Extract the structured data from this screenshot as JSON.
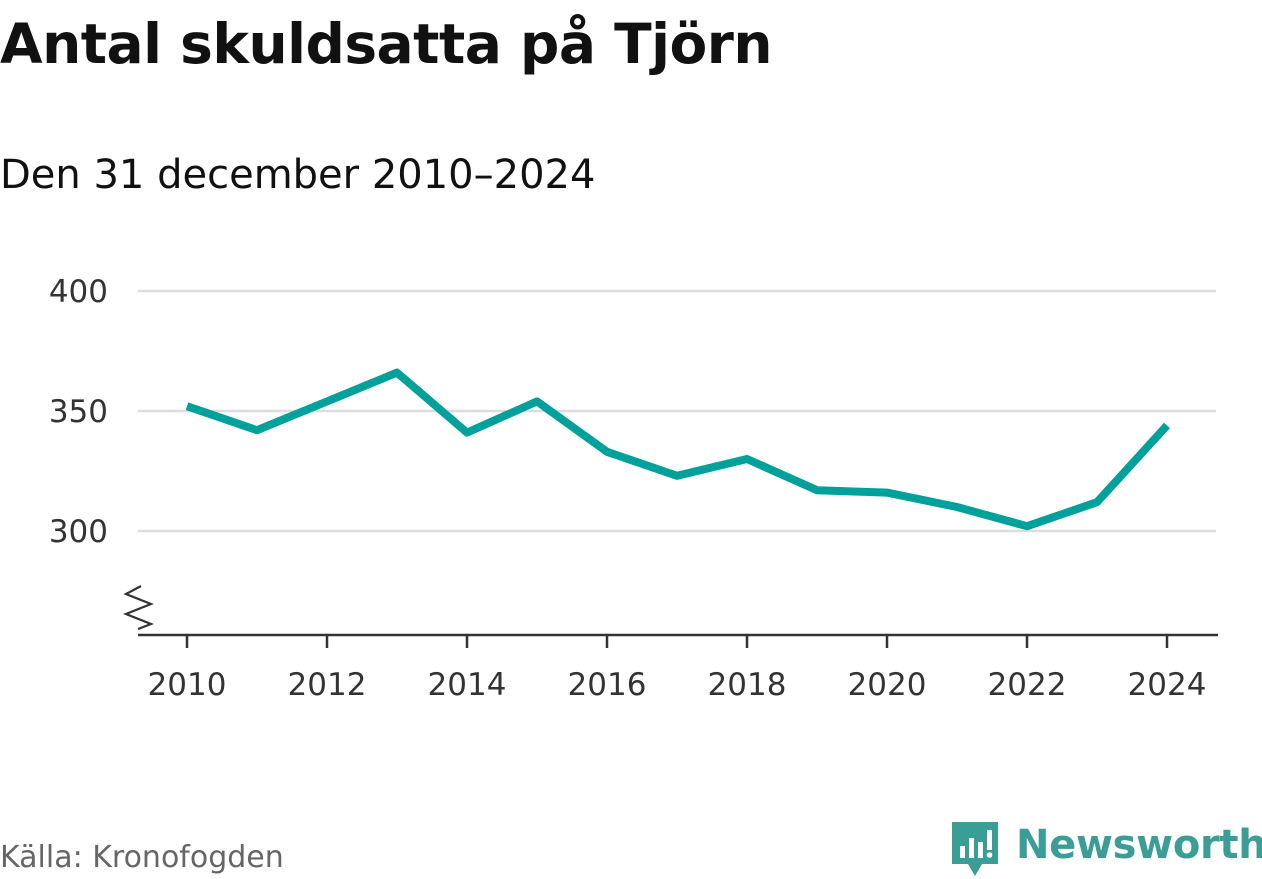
{
  "title": "Antal skuldsatta på Tjörn",
  "subtitle": "Den 31 december 2010–2024",
  "source": "Källa: Kronofogden",
  "brand": {
    "name": "Newsworthy",
    "icon": "newsworthy-logo-icon",
    "color": "#3a9e96"
  },
  "colors": {
    "line": "#00a19a",
    "grid": "#dddddd",
    "axis": "#333333",
    "text": "#333333"
  },
  "chart_data": {
    "type": "line",
    "title": "Antal skuldsatta på Tjörn",
    "subtitle": "Den 31 december 2010–2024",
    "xlabel": "",
    "ylabel": "",
    "x": [
      2010,
      2011,
      2012,
      2013,
      2014,
      2015,
      2016,
      2017,
      2018,
      2019,
      2020,
      2021,
      2022,
      2023,
      2024
    ],
    "series": [
      {
        "name": "Antal skuldsatta",
        "values": [
          352,
          342,
          354,
          366,
          341,
          354,
          333,
          323,
          330,
          317,
          316,
          310,
          302,
          312,
          344
        ]
      }
    ],
    "ylim": [
      257,
      400
    ],
    "yticks": [
      300,
      350,
      400
    ],
    "ytick_labels": [
      "300",
      "350",
      "400"
    ],
    "xticks": [
      2010,
      2012,
      2014,
      2016,
      2018,
      2020,
      2022,
      2024
    ],
    "xtick_labels": [
      "2010",
      "2012",
      "2014",
      "2016",
      "2018",
      "2020",
      "2022",
      "2024"
    ],
    "axis_break": true,
    "grid": true
  }
}
